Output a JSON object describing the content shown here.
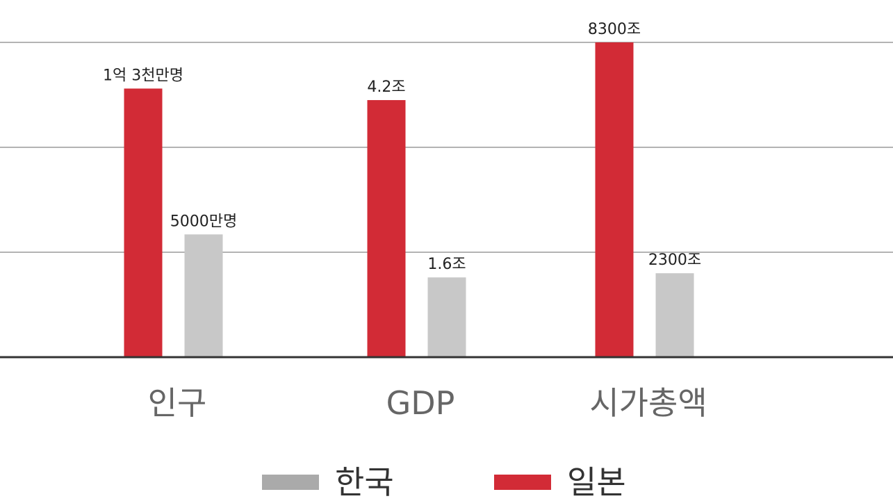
{
  "chart_data": {
    "type": "bar",
    "categories": [
      "인구",
      "GDP",
      "시가총액"
    ],
    "series": [
      {
        "name": "일본",
        "color": "#d22b36",
        "labels": [
          "1억 3천만명",
          "4.2조",
          "8300조"
        ],
        "values": [
          2.56,
          2.45,
          3.0
        ]
      },
      {
        "name": "한국",
        "color": "#c8c8c8",
        "labels": [
          "5000만명",
          "1.6조",
          "2300조"
        ],
        "values": [
          1.17,
          0.76,
          0.8
        ]
      }
    ],
    "legend": {
      "placement": "bottom",
      "items": [
        {
          "name": "한국",
          "color": "#aaaaaa"
        },
        {
          "name": "일본",
          "color": "#d22b36"
        }
      ]
    },
    "ylim": [
      0,
      3.0
    ],
    "gridlines": [
      1,
      2,
      3
    ],
    "grid": true
  }
}
